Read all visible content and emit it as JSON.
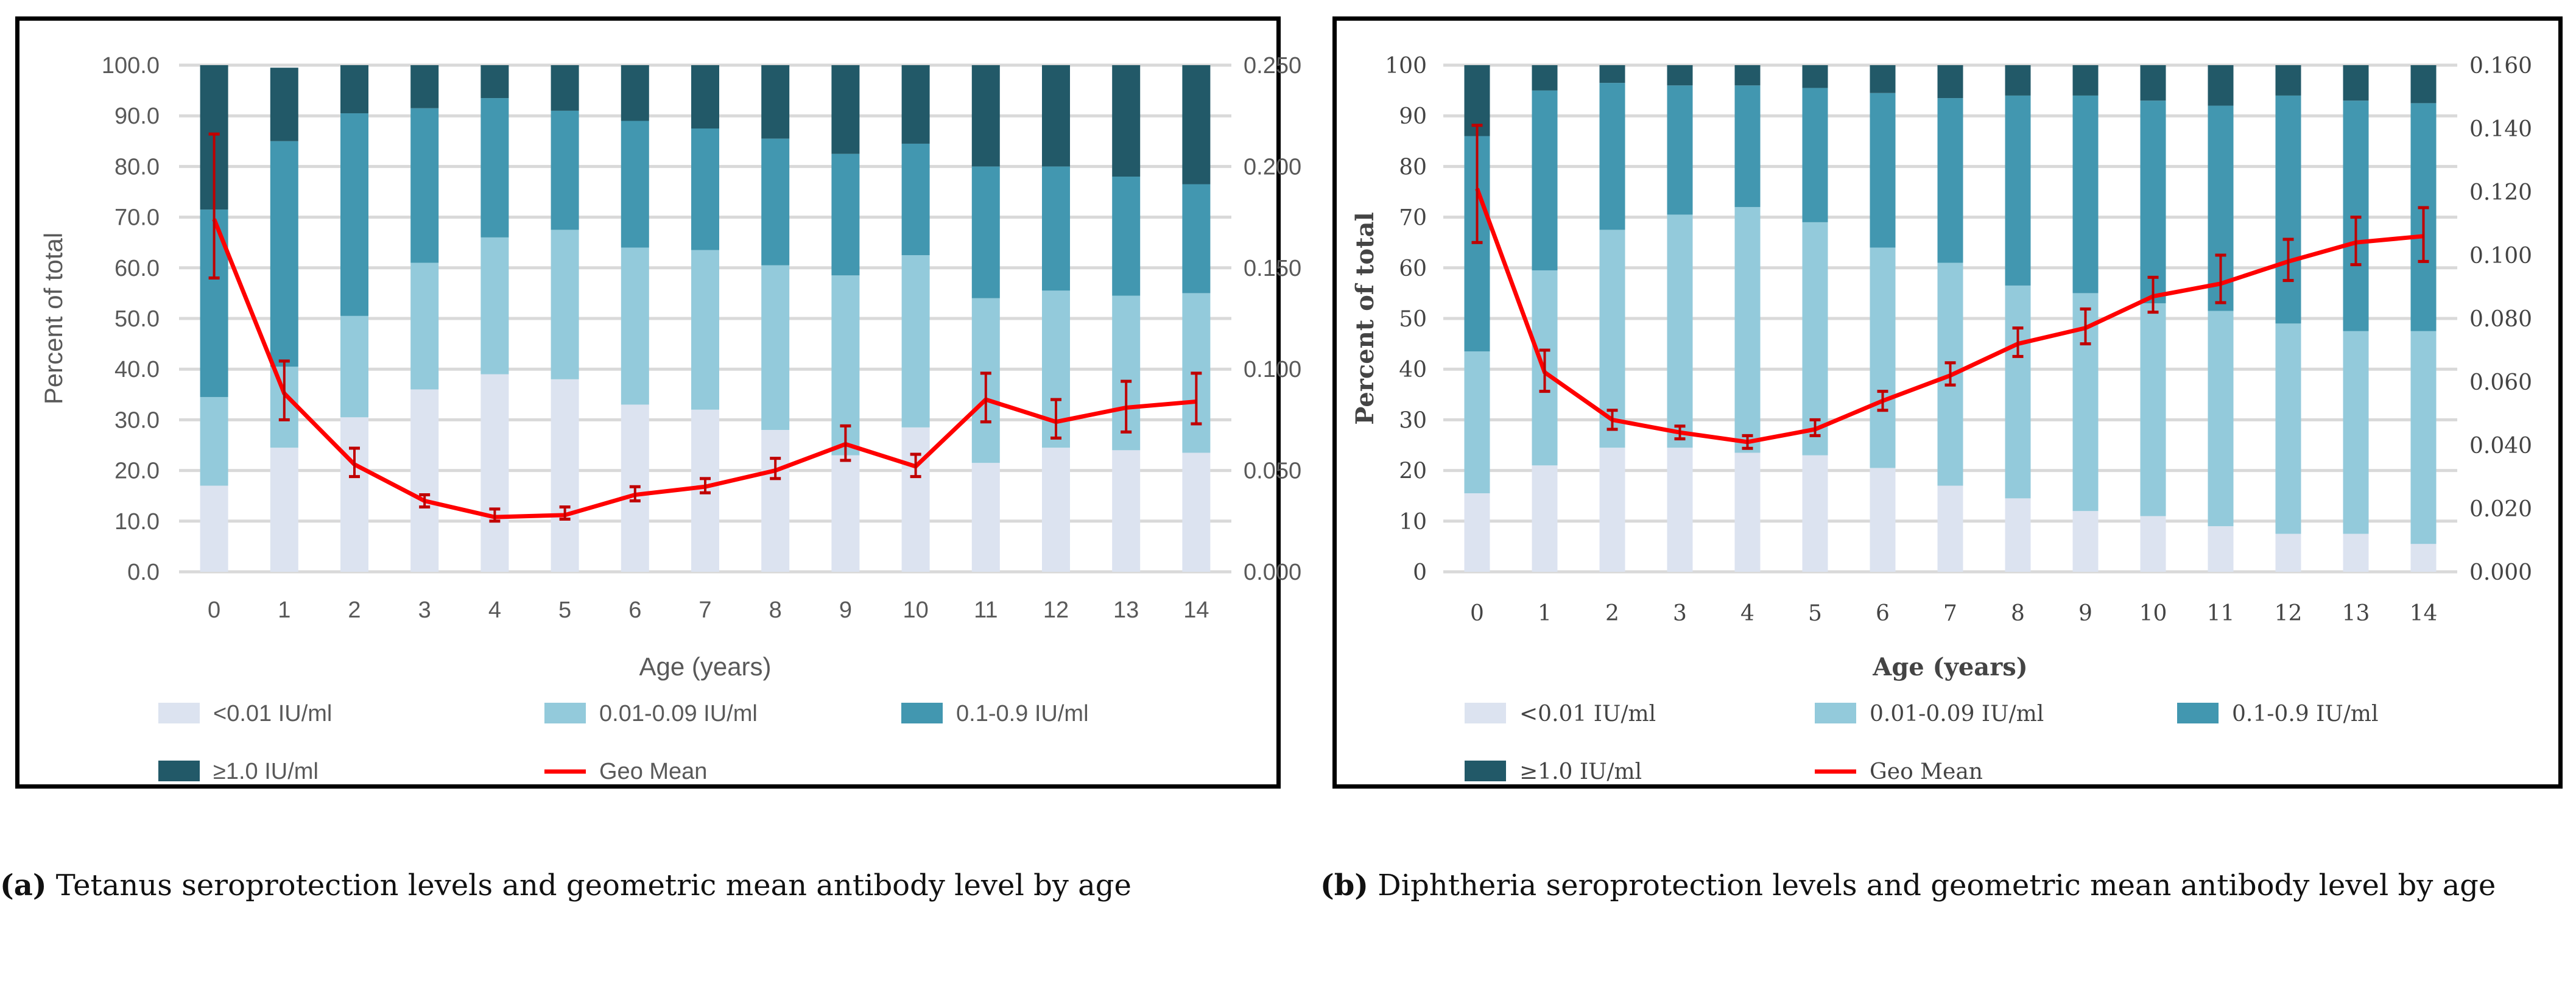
{
  "chart_data": [
    {
      "id": "a",
      "type": "bar",
      "stacked": true,
      "categories": [
        "0",
        "1",
        "2",
        "3",
        "4",
        "5",
        "6",
        "7",
        "8",
        "9",
        "10",
        "11",
        "12",
        "13",
        "14"
      ],
      "xlabel": "Age (years)",
      "ylabel": "Percent of total",
      "ylim": [
        0,
        100
      ],
      "y_ticks": [
        "0.0",
        "10.0",
        "20.0",
        "30.0",
        "40.0",
        "50.0",
        "60.0",
        "70.0",
        "80.0",
        "90.0",
        "100.0"
      ],
      "y2lim": [
        0,
        0.25
      ],
      "y2_ticks": [
        "0.000",
        "0.050",
        "0.100",
        "0.150",
        "0.200",
        "0.250"
      ],
      "grid": true,
      "legend_position": "bottom",
      "series": [
        {
          "name": "<0.01 IU/ml",
          "color": "#dce3f0",
          "values": [
            17,
            24.5,
            30.5,
            36,
            39,
            38,
            33,
            32,
            28,
            23,
            28.5,
            21.5,
            24.5,
            24,
            23.5
          ]
        },
        {
          "name": "0.01-0.09 IU/ml",
          "color": "#93cadb",
          "values": [
            17.5,
            16,
            20,
            25,
            27,
            29.5,
            31,
            31.5,
            32.5,
            35.5,
            34,
            32.5,
            31,
            30.5,
            31.5
          ]
        },
        {
          "name": "0.1-0.9 IU/ml",
          "color": "#4297b0",
          "values": [
            37,
            44.5,
            40,
            30.5,
            27.5,
            23.5,
            25,
            24,
            25,
            24,
            22,
            26,
            24.5,
            23.5,
            21.5
          ]
        },
        {
          "name": "≥1.0 IU/ml",
          "color": "#225968",
          "values": [
            28.5,
            14.5,
            9.5,
            8.5,
            6.5,
            9,
            11,
            12.5,
            14.5,
            17.5,
            15.5,
            20,
            20,
            22,
            23.5
          ]
        }
      ],
      "line": {
        "name": "Geo Mean",
        "color": "#ff0000",
        "axis": "right",
        "values": [
          0.174,
          0.088,
          0.053,
          0.035,
          0.027,
          0.028,
          0.038,
          0.042,
          0.05,
          0.063,
          0.052,
          0.085,
          0.074,
          0.081,
          0.084
        ],
        "err_low": [
          0.145,
          0.075,
          0.047,
          0.032,
          0.025,
          0.026,
          0.035,
          0.039,
          0.046,
          0.055,
          0.047,
          0.074,
          0.066,
          0.069,
          0.073
        ],
        "err_high": [
          0.216,
          0.104,
          0.061,
          0.038,
          0.031,
          0.032,
          0.042,
          0.046,
          0.056,
          0.072,
          0.058,
          0.098,
          0.085,
          0.094,
          0.098
        ]
      }
    },
    {
      "id": "b",
      "type": "bar",
      "stacked": true,
      "categories": [
        "0",
        "1",
        "2",
        "3",
        "4",
        "5",
        "6",
        "7",
        "8",
        "9",
        "10",
        "11",
        "12",
        "13",
        "14"
      ],
      "xlabel": "Age (years)",
      "ylabel": "Percent of total",
      "ylim": [
        0,
        100
      ],
      "y_ticks": [
        "0",
        "10",
        "20",
        "30",
        "40",
        "50",
        "60",
        "70",
        "80",
        "90",
        "100"
      ],
      "y2lim": [
        0,
        0.16
      ],
      "y2_ticks": [
        "0.000",
        "0.020",
        "0.040",
        "0.060",
        "0.080",
        "0.100",
        "0.120",
        "0.140",
        "0.160"
      ],
      "grid": true,
      "legend_position": "bottom",
      "series": [
        {
          "name": "<0.01 IU/ml",
          "color": "#dce3f0",
          "values": [
            15.5,
            21,
            24.5,
            24.5,
            23.5,
            23,
            20.5,
            17,
            14.5,
            12,
            11,
            9,
            7.5,
            7.5,
            5.5
          ]
        },
        {
          "name": "0.01-0.09 IU/ml",
          "color": "#93cadb",
          "values": [
            28,
            38.5,
            43,
            46,
            48.5,
            46,
            43.5,
            44,
            42,
            43,
            42,
            42.5,
            41.5,
            40,
            42
          ]
        },
        {
          "name": "0.1-0.9 IU/ml",
          "color": "#4297b0",
          "values": [
            42.5,
            35.5,
            29,
            25.5,
            24,
            26.5,
            30.5,
            32.5,
            37.5,
            39,
            40,
            40.5,
            45,
            45.5,
            45
          ]
        },
        {
          "name": "≥1.0 IU/ml",
          "color": "#225968",
          "values": [
            14,
            5,
            3.5,
            4,
            4,
            4.5,
            5.5,
            6.5,
            6,
            6,
            7,
            8,
            6,
            7,
            7.5
          ]
        }
      ],
      "line": {
        "name": "Geo Mean",
        "color": "#ff0000",
        "axis": "right",
        "values": [
          0.121,
          0.063,
          0.048,
          0.044,
          0.041,
          0.045,
          0.054,
          0.062,
          0.072,
          0.077,
          0.087,
          0.091,
          0.098,
          0.104,
          0.106
        ],
        "err_low": [
          0.104,
          0.057,
          0.045,
          0.042,
          0.039,
          0.043,
          0.051,
          0.059,
          0.068,
          0.072,
          0.082,
          0.085,
          0.092,
          0.097,
          0.098
        ],
        "err_high": [
          0.141,
          0.07,
          0.051,
          0.046,
          0.043,
          0.048,
          0.057,
          0.066,
          0.077,
          0.083,
          0.093,
          0.1,
          0.105,
          0.112,
          0.115
        ]
      }
    }
  ],
  "captions": {
    "a": {
      "label": "(a)",
      "text": " Tetanus seroprotection levels and geometric mean antibody level by age"
    },
    "b": {
      "label": "(b)",
      "text": " Diphtheria seroprotection levels and geometric mean antibody level by age"
    }
  }
}
